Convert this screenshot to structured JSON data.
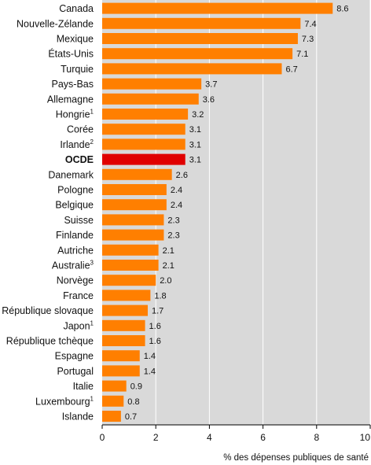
{
  "chart_data": {
    "type": "bar",
    "orientation": "horizontal",
    "categories": [
      "Canada",
      "Nouvelle-Zélande",
      "Mexique",
      "États-Unis",
      "Turquie",
      "Pays-Bas",
      "Allemagne",
      "Hongrie",
      "Corée",
      "Irlande",
      "OCDE",
      "Danemark",
      "Pologne",
      "Belgique",
      "Suisse",
      "Finlande",
      "Autriche",
      "Australie",
      "Norvège",
      "France",
      "République slovaque",
      "Japon",
      "République tchèque",
      "Espagne",
      "Portugal",
      "Italie",
      "Luxembourg",
      "Islande"
    ],
    "footnote_marks": [
      "",
      "",
      "",
      "",
      "",
      "",
      "",
      "1",
      "",
      "2",
      "",
      "",
      "",
      "",
      "",
      "",
      "",
      "3",
      "",
      "",
      "",
      "1",
      "",
      "",
      "",
      "",
      "1",
      ""
    ],
    "values": [
      8.6,
      7.4,
      7.3,
      7.1,
      6.7,
      3.7,
      3.6,
      3.2,
      3.1,
      3.1,
      3.1,
      2.6,
      2.4,
      2.4,
      2.3,
      2.3,
      2.1,
      2.1,
      2.0,
      1.8,
      1.7,
      1.6,
      1.6,
      1.4,
      1.4,
      0.9,
      0.8,
      0.7
    ],
    "value_labels": [
      "8.6",
      "7.4",
      "7.3",
      "7.1",
      "6.7",
      "3.7",
      "3.6",
      "3.2",
      "3.1",
      "3.1",
      "3.1",
      "2.6",
      "2.4",
      "2.4",
      "2.3",
      "2.3",
      "2.1",
      "2.1",
      "2.0",
      "1.8",
      "1.7",
      "1.6",
      "1.6",
      "1.4",
      "1.4",
      "0.9",
      "0.8",
      "0.7"
    ],
    "highlight": "OCDE",
    "xlabel": "% des dépenses publiques de santé",
    "ylabel": "",
    "title": "",
    "xlim": [
      0,
      10
    ],
    "xticks": [
      "0",
      "2",
      "4",
      "6",
      "8",
      "10"
    ],
    "grid": true,
    "colors": {
      "bar": "#ff7f00",
      "highlight": "#e00000",
      "plot_background": "#d9d9d9",
      "gridline": "#ffffff",
      "axis": "#000000"
    }
  }
}
